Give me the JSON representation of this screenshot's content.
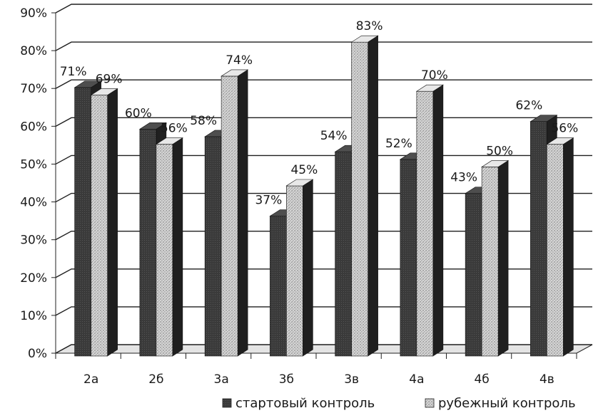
{
  "chart_data": {
    "type": "bar",
    "categories": [
      "2а",
      "2б",
      "3а",
      "3б",
      "3в",
      "4а",
      "4б",
      "4в"
    ],
    "series": [
      {
        "name": "стартовый контроль",
        "values": [
          71,
          60,
          58,
          37,
          54,
          52,
          43,
          62
        ],
        "color": "#3a3a3a"
      },
      {
        "name": "рубежный контроль",
        "values": [
          69,
          56,
          74,
          45,
          83,
          70,
          50,
          56
        ],
        "color": "#cfcfcf"
      }
    ],
    "data_labels": [
      [
        "71%",
        "60%",
        "58%",
        "37%",
        "54%",
        "52%",
        "43%",
        "62%"
      ],
      [
        "69%",
        "56%",
        "74%",
        "45%",
        "83%",
        "70%",
        "50%",
        "56%"
      ]
    ],
    "y_ticks": [
      "0%",
      "10%",
      "20%",
      "30%",
      "40%",
      "50%",
      "60%",
      "70%",
      "80%",
      "90%"
    ],
    "ylim": [
      0,
      90
    ],
    "grid": true,
    "style": "3d",
    "legend": "bottom"
  }
}
